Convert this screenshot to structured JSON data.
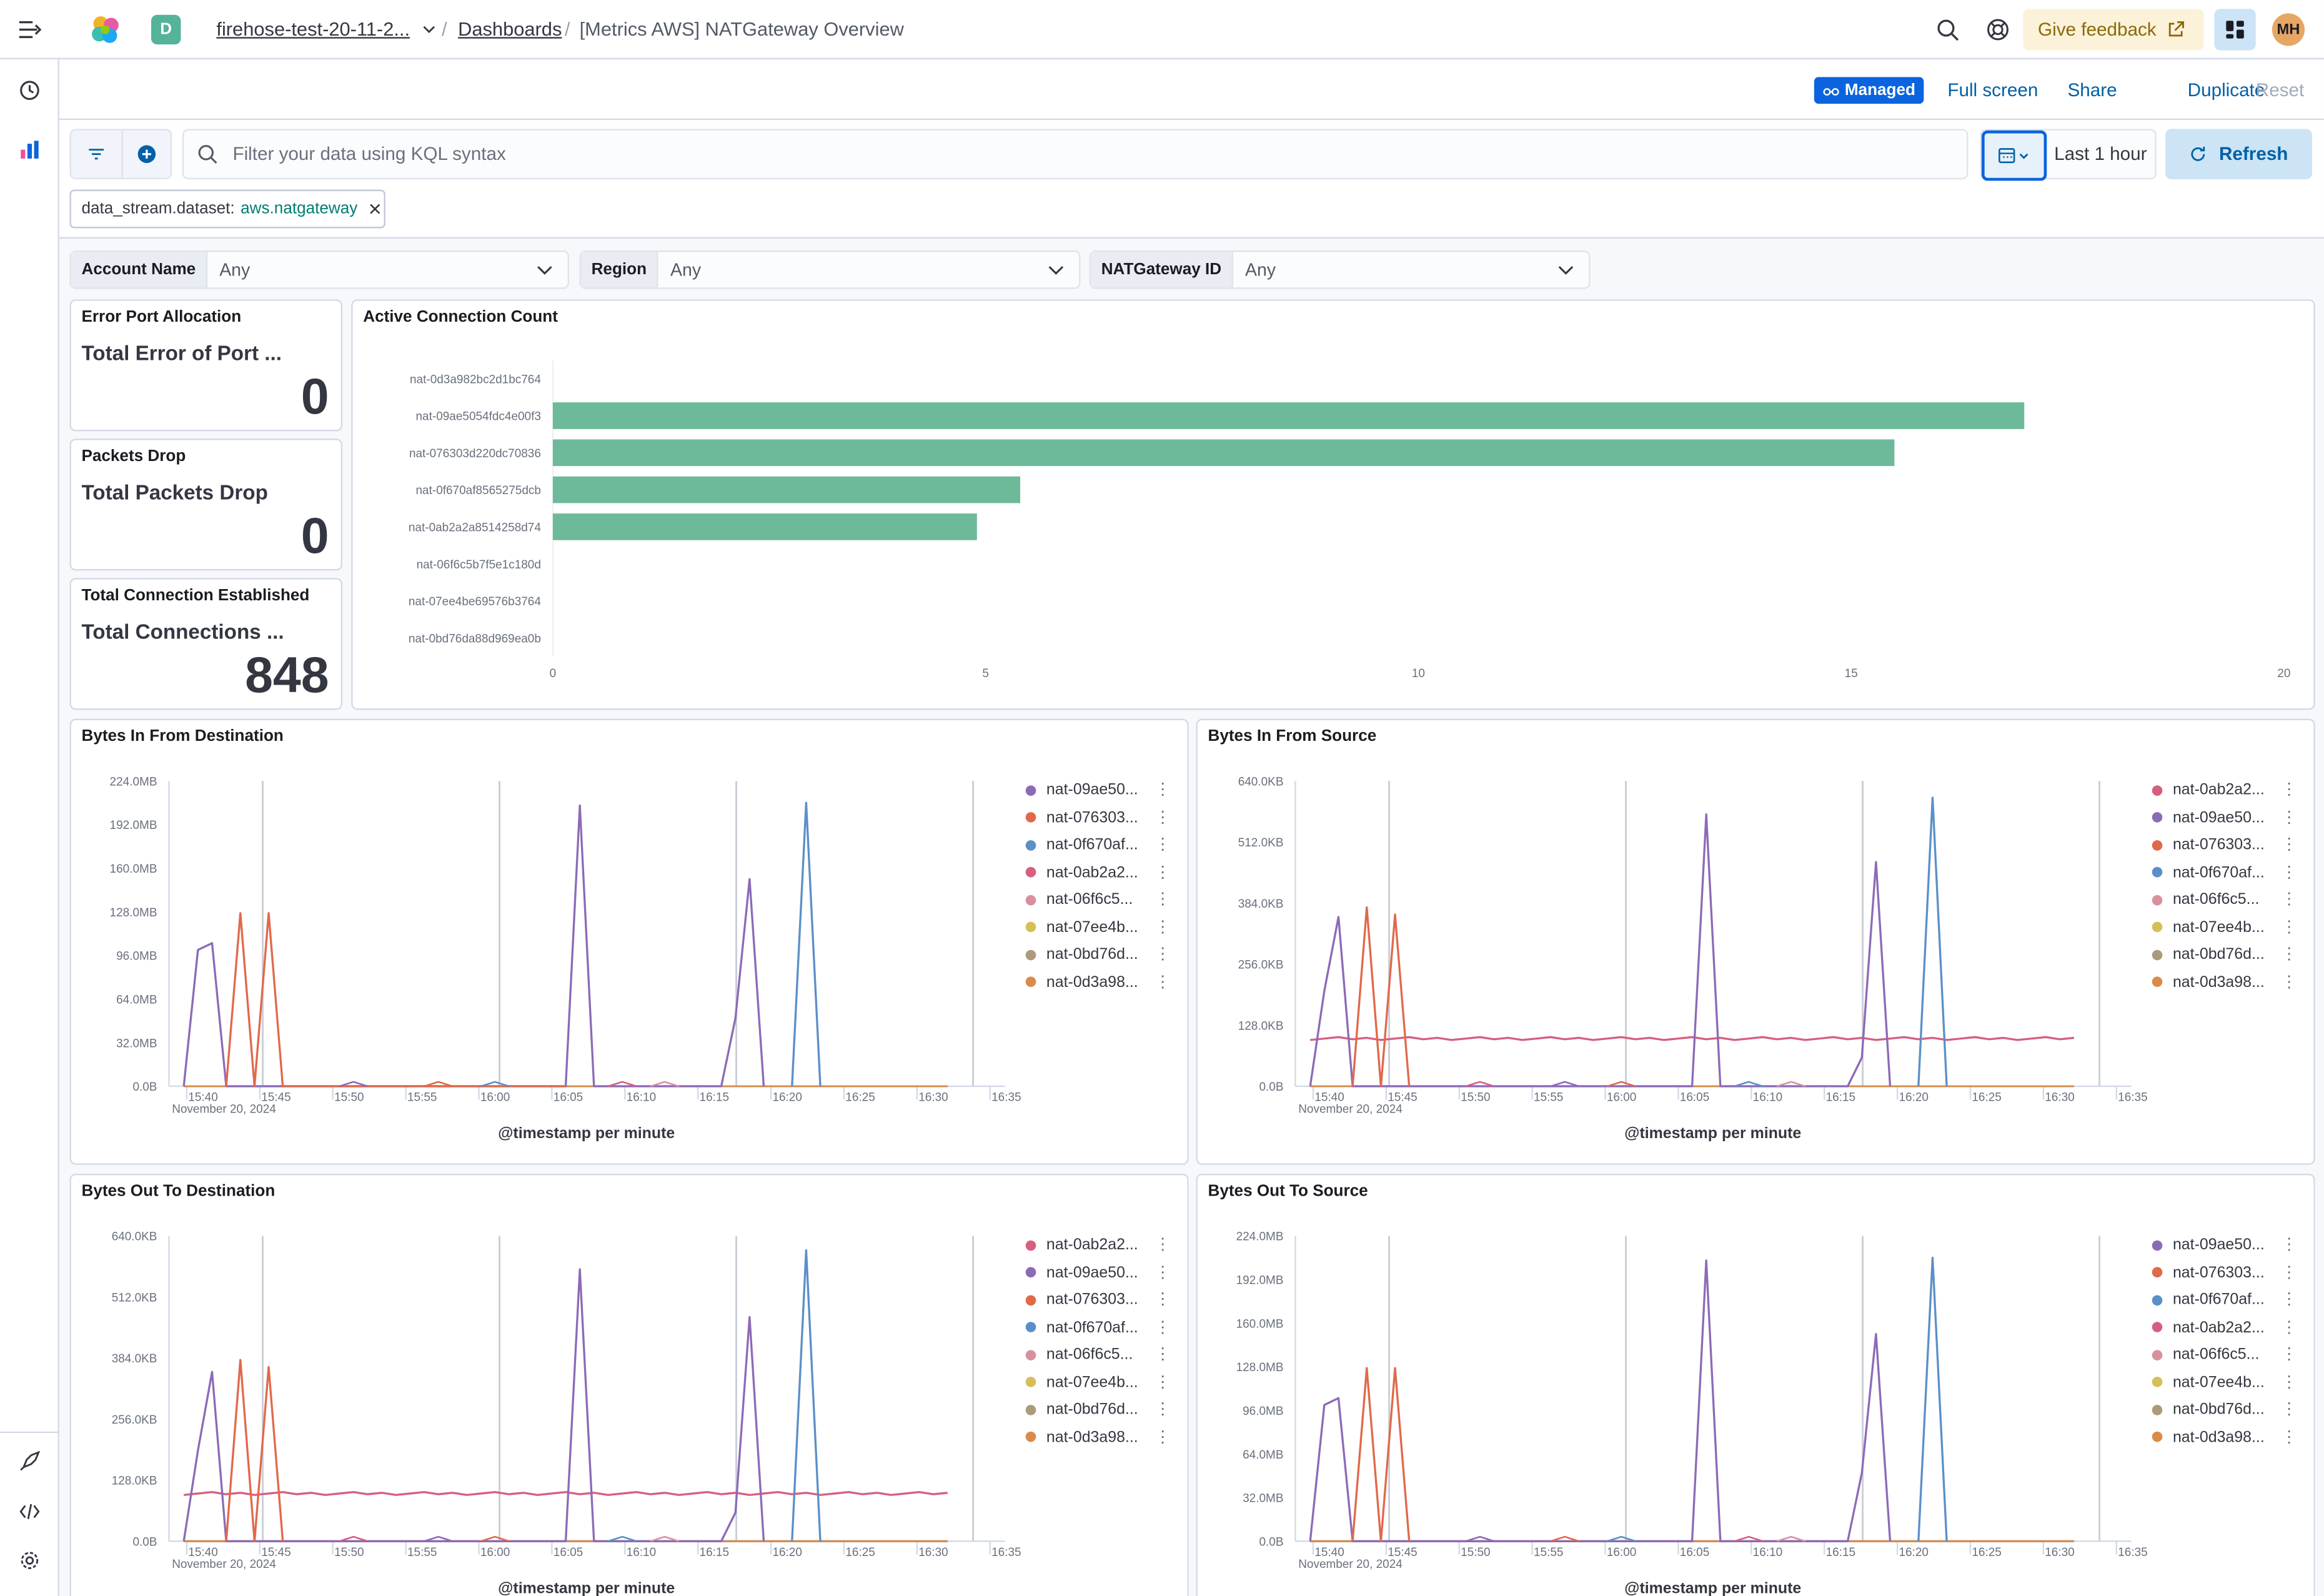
{
  "header": {
    "space_initial": "D",
    "breadcrumbs": [
      "firehose-test-20-11-2...",
      "Dashboards",
      "[Metrics AWS] NATGateway Overview"
    ],
    "give_feedback": "Give feedback",
    "avatar_initials": "MH"
  },
  "toolbar": {
    "managed_badge": "Managed",
    "full_screen": "Full screen",
    "share": "Share",
    "duplicate": "Duplicate",
    "reset": "Reset"
  },
  "query": {
    "placeholder": "Filter your data using KQL syntax",
    "time_range": "Last 1 hour",
    "refresh": "Refresh",
    "filter_pill_field": "data_stream.dataset:",
    "filter_pill_value": "aws.natgateway"
  },
  "controls": [
    {
      "label": "Account Name",
      "value": "Any"
    },
    {
      "label": "Region",
      "value": "Any"
    },
    {
      "label": "NATGateway ID",
      "value": "Any"
    }
  ],
  "metrics": [
    {
      "title": "Error Port Allocation",
      "label": "Total Error of Port ...",
      "value": "0"
    },
    {
      "title": "Packets Drop",
      "label": "Total Packets Drop",
      "value": "0"
    },
    {
      "title": "Total Connection Established",
      "label": "Total Connections ...",
      "value": "848"
    }
  ],
  "colors": {
    "accent": "#0061a6",
    "bar": "#6dba9a",
    "series": {
      "purple": "#8c6ab8",
      "orange": "#e0694a",
      "blue": "#5b8fc8",
      "pink": "#d65f7f",
      "lightpink": "#d8909f",
      "yellow": "#d6bf57",
      "tan": "#ac9a7b",
      "amber": "#d98c4a"
    }
  },
  "bar_chart": {
    "title": "Active Connection Count",
    "chart_data": {
      "type": "bar",
      "orientation": "horizontal",
      "categories": [
        "nat-0d3a982bc2d1bc764",
        "nat-09ae5054fdc4e00f3",
        "nat-076303d220dc70836",
        "nat-0f670af8565275dcb",
        "nat-0ab2a2a8514258d74",
        "nat-06f6c5b7f5e1c180d",
        "nat-07ee4be69576b3764",
        "nat-0bd76da88d969ea0b"
      ],
      "values": [
        0,
        17,
        15.5,
        5.4,
        4.9,
        0,
        0,
        0
      ],
      "xlim": [
        0,
        20
      ],
      "xticks": [
        "0",
        "5",
        "10",
        "15",
        "20"
      ]
    }
  },
  "line_charts": [
    {
      "title": "Bytes In From Destination",
      "xlabel": "@timestamp per minute",
      "date_label": "November 20, 2024",
      "yticks": [
        "224.0MB",
        "192.0MB",
        "160.0MB",
        "128.0MB",
        "96.0MB",
        "64.0MB",
        "32.0MB",
        "0.0B"
      ],
      "ymax": 224,
      "unit": "MB",
      "xticks": [
        "15:40",
        "15:45",
        "15:50",
        "15:55",
        "16:00",
        "16:05",
        "16:10",
        "16:15",
        "16:20",
        "16:25",
        "16:30",
        "16:35"
      ],
      "legend": [
        {
          "name": "nat-09ae50...",
          "color": "#8c6ab8"
        },
        {
          "name": "nat-076303...",
          "color": "#e0694a"
        },
        {
          "name": "nat-0f670af...",
          "color": "#5b8fc8"
        },
        {
          "name": "nat-0ab2a2...",
          "color": "#d65f7f"
        },
        {
          "name": "nat-06f6c5...",
          "color": "#d8909f"
        },
        {
          "name": "nat-07ee4b...",
          "color": "#d6bf57"
        },
        {
          "name": "nat-0bd76d...",
          "color": "#ac9a7b"
        },
        {
          "name": "nat-0d3a98...",
          "color": "#d98c4a"
        }
      ],
      "chart_data": {
        "type": "line",
        "x": [
          "15:39",
          "15:40",
          "15:41",
          "15:42",
          "15:43",
          "15:44",
          "15:45",
          "15:46",
          "16:10",
          "16:11",
          "16:12",
          "16:20",
          "16:21",
          "16:22",
          "16:23",
          "16:26",
          "16:27",
          "16:28"
        ],
        "series": [
          {
            "name": "nat-09ae50...",
            "color": "#8c6ab8",
            "points": [
              [
                0,
                0
              ],
              [
                1,
                100
              ],
              [
                2,
                105
              ],
              [
                3,
                0
              ],
              [
                27,
                0
              ],
              [
                28,
                206
              ],
              [
                29,
                0
              ],
              [
                38,
                0
              ],
              [
                39,
                50
              ],
              [
                40,
                152
              ],
              [
                41,
                0
              ]
            ]
          },
          {
            "name": "nat-076303...",
            "color": "#e0694a",
            "points": [
              [
                3,
                0
              ],
              [
                4,
                127
              ],
              [
                5,
                0
              ],
              [
                6,
                127
              ],
              [
                7,
                0
              ],
              [
                27,
                0
              ]
            ]
          },
          {
            "name": "nat-0f670af...",
            "color": "#5b8fc8",
            "points": [
              [
                43,
                0
              ],
              [
                44,
                208
              ],
              [
                45,
                0
              ]
            ]
          }
        ]
      }
    },
    {
      "title": "Bytes In From Source",
      "xlabel": "@timestamp per minute",
      "date_label": "November 20, 2024",
      "yticks": [
        "640.0KB",
        "512.0KB",
        "384.0KB",
        "256.0KB",
        "128.0KB",
        "0.0B"
      ],
      "ymax": 640,
      "unit": "KB",
      "xticks": [
        "15:40",
        "15:45",
        "15:50",
        "15:55",
        "16:00",
        "16:05",
        "16:10",
        "16:15",
        "16:20",
        "16:25",
        "16:30",
        "16:35"
      ],
      "legend": [
        {
          "name": "nat-0ab2a2...",
          "color": "#d65f7f"
        },
        {
          "name": "nat-09ae50...",
          "color": "#8c6ab8"
        },
        {
          "name": "nat-076303...",
          "color": "#e0694a"
        },
        {
          "name": "nat-0f670af...",
          "color": "#5b8fc8"
        },
        {
          "name": "nat-06f6c5...",
          "color": "#d8909f"
        },
        {
          "name": "nat-07ee4b...",
          "color": "#d6bf57"
        },
        {
          "name": "nat-0bd76d...",
          "color": "#ac9a7b"
        },
        {
          "name": "nat-0d3a98...",
          "color": "#d98c4a"
        }
      ],
      "chart_data": {
        "type": "line",
        "series": [
          {
            "name": "nat-0ab2a2...",
            "color": "#d65f7f",
            "flat": 100
          },
          {
            "name": "nat-09ae50...",
            "color": "#8c6ab8",
            "points": [
              [
                0,
                0
              ],
              [
                1,
                200
              ],
              [
                2,
                355
              ],
              [
                3,
                0
              ],
              [
                27,
                0
              ],
              [
                28,
                570
              ],
              [
                29,
                0
              ],
              [
                38,
                0
              ],
              [
                39,
                60
              ],
              [
                40,
                470
              ],
              [
                41,
                0
              ]
            ]
          },
          {
            "name": "nat-076303...",
            "color": "#e0694a",
            "points": [
              [
                3,
                0
              ],
              [
                4,
                375
              ],
              [
                5,
                0
              ],
              [
                6,
                360
              ],
              [
                7,
                0
              ]
            ]
          },
          {
            "name": "nat-0f670af...",
            "color": "#5b8fc8",
            "points": [
              [
                43,
                0
              ],
              [
                44,
                605
              ],
              [
                45,
                0
              ]
            ]
          }
        ]
      }
    },
    {
      "title": "Bytes Out To Destination",
      "xlabel": "@timestamp per minute",
      "date_label": "November 20, 2024",
      "yticks": [
        "640.0KB",
        "512.0KB",
        "384.0KB",
        "256.0KB",
        "128.0KB",
        "0.0B"
      ],
      "ymax": 640,
      "unit": "KB",
      "xticks": [
        "15:40",
        "15:45",
        "15:50",
        "15:55",
        "16:00",
        "16:05",
        "16:10",
        "16:15",
        "16:20",
        "16:25",
        "16:30",
        "16:35"
      ],
      "legend": [
        {
          "name": "nat-0ab2a2...",
          "color": "#d65f7f"
        },
        {
          "name": "nat-09ae50...",
          "color": "#8c6ab8"
        },
        {
          "name": "nat-076303...",
          "color": "#e0694a"
        },
        {
          "name": "nat-0f670af...",
          "color": "#5b8fc8"
        },
        {
          "name": "nat-06f6c5...",
          "color": "#d8909f"
        },
        {
          "name": "nat-07ee4b...",
          "color": "#d6bf57"
        },
        {
          "name": "nat-0bd76d...",
          "color": "#ac9a7b"
        },
        {
          "name": "nat-0d3a98...",
          "color": "#d98c4a"
        }
      ],
      "chart_data": {
        "type": "line",
        "series": [
          {
            "name": "nat-0ab2a2...",
            "color": "#d65f7f",
            "flat": 100
          },
          {
            "name": "nat-09ae50...",
            "color": "#8c6ab8",
            "points": [
              [
                0,
                0
              ],
              [
                1,
                190
              ],
              [
                2,
                355
              ],
              [
                3,
                0
              ],
              [
                27,
                0
              ],
              [
                28,
                570
              ],
              [
                29,
                0
              ],
              [
                38,
                0
              ],
              [
                39,
                60
              ],
              [
                40,
                470
              ],
              [
                41,
                0
              ]
            ]
          },
          {
            "name": "nat-076303...",
            "color": "#e0694a",
            "points": [
              [
                3,
                0
              ],
              [
                4,
                380
              ],
              [
                5,
                0
              ],
              [
                6,
                365
              ],
              [
                7,
                0
              ]
            ]
          },
          {
            "name": "nat-0f670af...",
            "color": "#5b8fc8",
            "points": [
              [
                43,
                0
              ],
              [
                44,
                610
              ],
              [
                45,
                0
              ]
            ]
          }
        ]
      }
    },
    {
      "title": "Bytes Out To Source",
      "xlabel": "@timestamp per minute",
      "date_label": "November 20, 2024",
      "yticks": [
        "224.0MB",
        "192.0MB",
        "160.0MB",
        "128.0MB",
        "96.0MB",
        "64.0MB",
        "32.0MB",
        "0.0B"
      ],
      "ymax": 224,
      "unit": "MB",
      "xticks": [
        "15:40",
        "15:45",
        "15:50",
        "15:55",
        "16:00",
        "16:05",
        "16:10",
        "16:15",
        "16:20",
        "16:25",
        "16:30",
        "16:35"
      ],
      "legend": [
        {
          "name": "nat-09ae50...",
          "color": "#8c6ab8"
        },
        {
          "name": "nat-076303...",
          "color": "#e0694a"
        },
        {
          "name": "nat-0f670af...",
          "color": "#5b8fc8"
        },
        {
          "name": "nat-0ab2a2...",
          "color": "#d65f7f"
        },
        {
          "name": "nat-06f6c5...",
          "color": "#d8909f"
        },
        {
          "name": "nat-07ee4b...",
          "color": "#d6bf57"
        },
        {
          "name": "nat-0bd76d...",
          "color": "#ac9a7b"
        },
        {
          "name": "nat-0d3a98...",
          "color": "#d98c4a"
        }
      ],
      "chart_data": {
        "type": "line",
        "series": [
          {
            "name": "nat-09ae50...",
            "color": "#8c6ab8",
            "points": [
              [
                0,
                0
              ],
              [
                1,
                100
              ],
              [
                2,
                105
              ],
              [
                3,
                0
              ],
              [
                27,
                0
              ],
              [
                28,
                206
              ],
              [
                29,
                0
              ],
              [
                38,
                0
              ],
              [
                39,
                50
              ],
              [
                40,
                152
              ],
              [
                41,
                0
              ]
            ]
          },
          {
            "name": "nat-076303...",
            "color": "#e0694a",
            "points": [
              [
                3,
                0
              ],
              [
                4,
                127
              ],
              [
                5,
                0
              ],
              [
                6,
                127
              ],
              [
                7,
                0
              ]
            ]
          },
          {
            "name": "nat-0f670af...",
            "color": "#5b8fc8",
            "points": [
              [
                43,
                0
              ],
              [
                44,
                208
              ],
              [
                45,
                0
              ]
            ]
          }
        ]
      }
    }
  ]
}
